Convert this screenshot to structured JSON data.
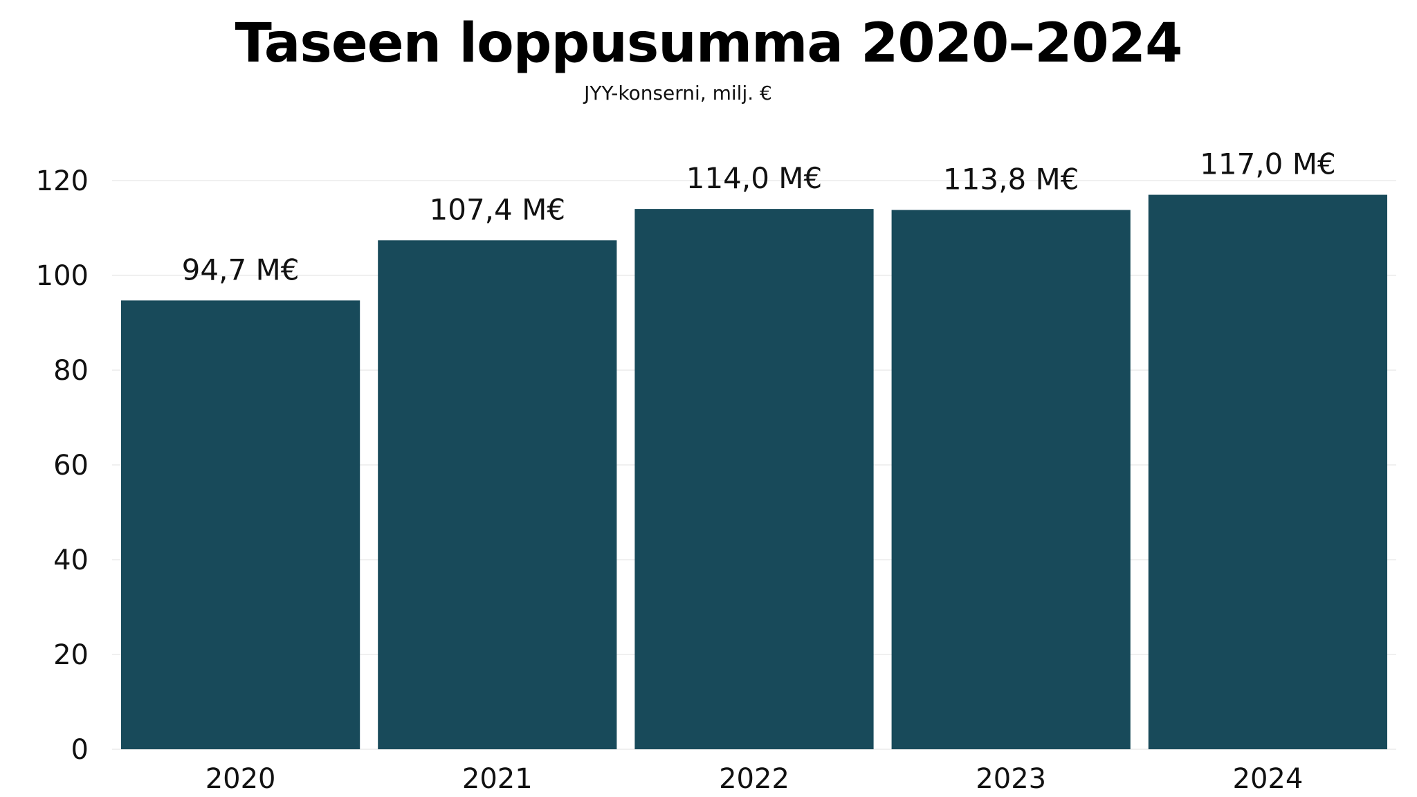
{
  "chart_data": {
    "type": "bar",
    "title": "Taseen loppusumma 2020–2024",
    "subtitle": "JYY-konserni, milj. €",
    "xlabel": "",
    "ylabel": "",
    "categories": [
      "2020",
      "2021",
      "2022",
      "2023",
      "2024"
    ],
    "values": [
      94.7,
      107.4,
      114.0,
      113.8,
      117.0
    ],
    "data_labels": [
      "94,7 M€",
      "107,4 M€",
      "114,0 M€",
      "113,8 M€",
      "117,0 M€"
    ],
    "ylim": [
      0,
      120
    ],
    "yticks": [
      0,
      20,
      40,
      60,
      80,
      100,
      120
    ],
    "grid": true,
    "legend": "none",
    "colors": {
      "bar": "#184a5a",
      "grid": "#ececec"
    }
  }
}
